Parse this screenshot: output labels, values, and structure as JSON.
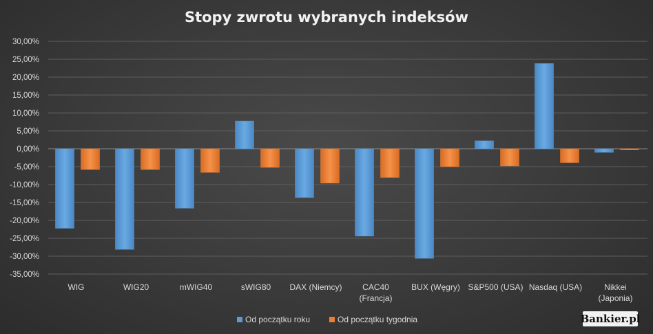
{
  "chart_data": {
    "type": "bar",
    "title": "Stopy zwrotu wybranych indeksów",
    "xlabel": "",
    "ylabel": "",
    "ylim": [
      -0.35,
      0.3
    ],
    "ytick_values": [
      0.3,
      0.25,
      0.2,
      0.15,
      0.1,
      0.05,
      0.0,
      -0.05,
      -0.1,
      -0.15,
      -0.2,
      -0.25,
      -0.3,
      -0.35
    ],
    "ytick_labels": [
      "30,00%",
      "25,00%",
      "20,00%",
      "15,00%",
      "10,00%",
      "5,00%",
      "0,00%",
      "-5,00%",
      "-10,00%",
      "-15,00%",
      "-20,00%",
      "-25,00%",
      "-30,00%",
      "-35,00%"
    ],
    "grid": true,
    "legend_position": "bottom",
    "categories": [
      [
        "WIG"
      ],
      [
        "WIG20"
      ],
      [
        "mWIG40"
      ],
      [
        "sWIG80"
      ],
      [
        "DAX (Niemcy)"
      ],
      [
        "CAC40",
        "(Francja)"
      ],
      [
        "BUX (Węgry)"
      ],
      [
        "S&P500 (USA)"
      ],
      [
        "Nasdaq (USA)"
      ],
      [
        "Nikkei",
        "(Japonia)"
      ]
    ],
    "series": [
      {
        "name": "Od początku roku",
        "color": "#5b9bd5",
        "values": [
          -0.222,
          -0.281,
          -0.166,
          0.077,
          -0.136,
          -0.244,
          -0.306,
          0.022,
          0.238,
          -0.01
        ]
      },
      {
        "name": "Od początku tygodnia",
        "color": "#ed7d31",
        "values": [
          -0.058,
          -0.058,
          -0.066,
          -0.052,
          -0.096,
          -0.08,
          -0.05,
          -0.048,
          -0.039,
          -0.003
        ]
      }
    ]
  },
  "branding": {
    "logo_text": "Bankier.pl"
  }
}
